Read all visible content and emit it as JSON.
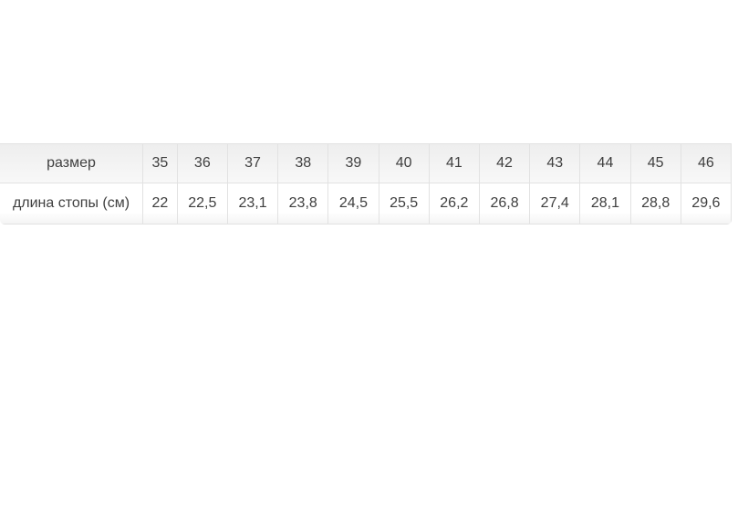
{
  "size_table": {
    "header_label": "размер",
    "row_label": "длина стопы (см)",
    "sizes": [
      "35",
      "36",
      "37",
      "38",
      "39",
      "40",
      "41",
      "42",
      "43",
      "44",
      "45",
      "46"
    ],
    "foot_lengths_cm": [
      "22",
      "22,5",
      "23,1",
      "23,8",
      "24,5",
      "25,5",
      "26,2",
      "26,8",
      "27,4",
      "28,1",
      "28,8",
      "29,6"
    ],
    "colors": {
      "text": "#3f3f3f",
      "border": "#e2e2e2",
      "header_bg_top": "#eeeeee",
      "header_bg_bottom": "#f8f8f8"
    }
  }
}
